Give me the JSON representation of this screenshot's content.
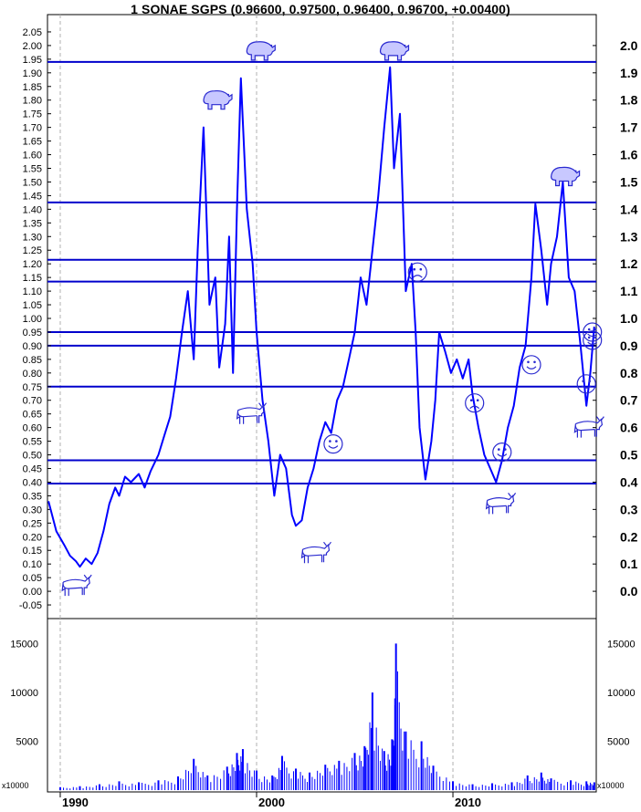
{
  "chart_data": {
    "type": "line",
    "title": "1 SONAE SGPS (0.96600, 0.97500, 0.96400, 0.96700, +0.00400)",
    "price_panel": {
      "left_ticks": [
        "2.05",
        "2.00",
        "1.95",
        "1.90",
        "1.85",
        "1.80",
        "1.75",
        "1.70",
        "1.65",
        "1.60",
        "1.55",
        "1.50",
        "1.45",
        "1.40",
        "1.35",
        "1.30",
        "1.25",
        "1.20",
        "1.15",
        "1.10",
        "1.05",
        "1.00",
        "0.95",
        "0.90",
        "0.85",
        "0.80",
        "0.75",
        "0.70",
        "0.65",
        "0.60",
        "0.55",
        "0.50",
        "0.45",
        "0.40",
        "0.35",
        "0.30",
        "0.25",
        "0.20",
        "0.15",
        "0.10",
        "0.05",
        "0.00",
        "-0.05"
      ],
      "right_ticks": [
        "2.0",
        "1.9",
        "1.8",
        "1.7",
        "1.6",
        "1.5",
        "1.4",
        "1.3",
        "1.2",
        "1.1",
        "1.0",
        "0.9",
        "0.8",
        "0.7",
        "0.6",
        "0.5",
        "0.4",
        "0.3",
        "0.2",
        "0.1",
        "0.0"
      ],
      "ylim": [
        -0.1,
        2.1
      ],
      "horizontal_levels": [
        1.94,
        1.425,
        1.215,
        1.135,
        0.95,
        0.9,
        0.75,
        0.48,
        0.395
      ],
      "series": [
        {
          "x": [
            1989.4,
            1989.8,
            1990.2,
            1990.5,
            1990.8,
            1991.0,
            1991.3,
            1991.6,
            1991.9,
            1992.2,
            1992.5,
            1992.8,
            1993.0,
            1993.3,
            1993.6,
            1994.0,
            1994.3,
            1994.6,
            1995.0,
            1995.3,
            1995.6,
            1995.9,
            1996.2,
            1996.5,
            1996.8,
            1997.0,
            1997.3,
            1997.6,
            1997.9,
            1998.1,
            1998.4,
            1998.6,
            1998.8,
            1999.0,
            1999.2,
            1999.5,
            1999.8,
            2000.0,
            2000.3,
            2000.6,
            2000.9,
            2001.2,
            2001.5,
            2001.8,
            2002.0,
            2002.3,
            2002.6,
            2002.9,
            2003.2,
            2003.5,
            2003.8,
            2004.1,
            2004.4,
            2004.7,
            2005.0,
            2005.3,
            2005.6,
            2005.9,
            2006.2,
            2006.5,
            2006.8,
            2007.0,
            2007.3,
            2007.6,
            2007.9,
            2008.1,
            2008.3,
            2008.6,
            2008.9,
            2009.1,
            2009.3,
            2009.6,
            2009.9,
            2010.2,
            2010.5,
            2010.8,
            2011.0,
            2011.3,
            2011.6,
            2011.9,
            2012.2,
            2012.5,
            2012.8,
            2013.1,
            2013.4,
            2013.7,
            2014.0,
            2014.2,
            2014.5,
            2014.8,
            2015.0,
            2015.3,
            2015.6,
            2015.9,
            2016.2,
            2016.5,
            2016.8,
            2017.0,
            2017.2
          ],
          "y": [
            0.33,
            0.22,
            0.17,
            0.13,
            0.11,
            0.09,
            0.12,
            0.1,
            0.14,
            0.22,
            0.32,
            0.38,
            0.35,
            0.42,
            0.4,
            0.43,
            0.38,
            0.44,
            0.5,
            0.57,
            0.64,
            0.78,
            0.95,
            1.1,
            0.85,
            1.25,
            1.7,
            1.05,
            1.15,
            0.82,
            0.98,
            1.3,
            0.8,
            1.4,
            1.88,
            1.4,
            1.2,
            0.95,
            0.7,
            0.55,
            0.35,
            0.5,
            0.45,
            0.28,
            0.24,
            0.26,
            0.38,
            0.45,
            0.55,
            0.62,
            0.58,
            0.7,
            0.75,
            0.85,
            0.95,
            1.15,
            1.05,
            1.25,
            1.45,
            1.7,
            1.92,
            1.55,
            1.75,
            1.1,
            1.2,
            0.95,
            0.6,
            0.41,
            0.55,
            0.7,
            0.95,
            0.88,
            0.8,
            0.85,
            0.78,
            0.85,
            0.72,
            0.6,
            0.5,
            0.45,
            0.4,
            0.48,
            0.6,
            0.68,
            0.82,
            0.9,
            1.15,
            1.42,
            1.25,
            1.05,
            1.2,
            1.3,
            1.5,
            1.15,
            1.1,
            0.9,
            0.68,
            0.8,
            0.97
          ]
        }
      ]
    },
    "volume_panel": {
      "multiplier_label": "x10000",
      "left_ticks": [
        "15000",
        "10000",
        "5000"
      ],
      "right_ticks": [
        "15000",
        "10000",
        "5000"
      ],
      "ylim": [
        0,
        17000
      ],
      "volume_x": [
        1990.0,
        1991.0,
        1992.0,
        1993.0,
        1994.0,
        1995.0,
        1996.0,
        1996.8,
        1997.5,
        1998.5,
        1999.0,
        1999.3,
        2000.0,
        2000.8,
        2001.3,
        2002.0,
        2002.7,
        2003.5,
        2004.2,
        2005.0,
        2005.5,
        2005.9,
        2006.5,
        2006.9,
        2007.1,
        2007.6,
        2008.4,
        2009.0,
        2010.0,
        2011.0,
        2012.0,
        2013.0,
        2013.8,
        2014.5,
        2015.0,
        2016.0,
        2016.8,
        2017.2
      ],
      "volume_y": [
        300,
        400,
        600,
        900,
        800,
        1000,
        1400,
        3200,
        1500,
        2400,
        3800,
        4200,
        2000,
        1500,
        3500,
        2200,
        1800,
        2600,
        3000,
        3800,
        4500,
        10000,
        4000,
        5200,
        15000,
        6000,
        5000,
        2500,
        900,
        600,
        700,
        800,
        1500,
        1800,
        1200,
        1000,
        900,
        800
      ]
    },
    "xaxis": {
      "tick_labels": [
        "1990",
        "2000",
        "2010"
      ],
      "tick_values": [
        1990,
        2000,
        2010
      ],
      "xlim": [
        1989.35,
        2017.3
      ]
    },
    "annotations": [
      {
        "type": "bear-icon",
        "x": 1998.0,
        "y": 1.8
      },
      {
        "type": "bear-icon",
        "x": 2000.2,
        "y": 1.98
      },
      {
        "type": "bear-icon",
        "x": 2007.0,
        "y": 1.98
      },
      {
        "type": "bear-icon",
        "x": 2015.7,
        "y": 1.52
      },
      {
        "type": "bull-icon",
        "x": 1990.8,
        "y": 0.02
      },
      {
        "type": "bull-icon",
        "x": 1999.7,
        "y": 0.65
      },
      {
        "type": "bull-icon",
        "x": 2003.0,
        "y": 0.14
      },
      {
        "type": "bull-icon",
        "x": 2012.4,
        "y": 0.32
      },
      {
        "type": "bull-icon",
        "x": 2016.9,
        "y": 0.6
      },
      {
        "type": "smile-icon",
        "x": 2003.9,
        "y": 0.54
      },
      {
        "type": "frown-icon",
        "x": 2008.2,
        "y": 1.17
      },
      {
        "type": "frown-icon",
        "x": 2011.1,
        "y": 0.69
      },
      {
        "type": "smile-icon",
        "x": 2012.5,
        "y": 0.51
      },
      {
        "type": "smile-icon",
        "x": 2014.0,
        "y": 0.83
      },
      {
        "type": "smile-icon",
        "x": 2017.1,
        "y": 0.95
      },
      {
        "type": "smile-icon",
        "x": 2017.1,
        "y": 0.92
      },
      {
        "type": "smile-icon",
        "x": 2016.8,
        "y": 0.76
      }
    ],
    "line_color": "#0000ff",
    "grid": "dashed vertical lines at decade ticks"
  }
}
